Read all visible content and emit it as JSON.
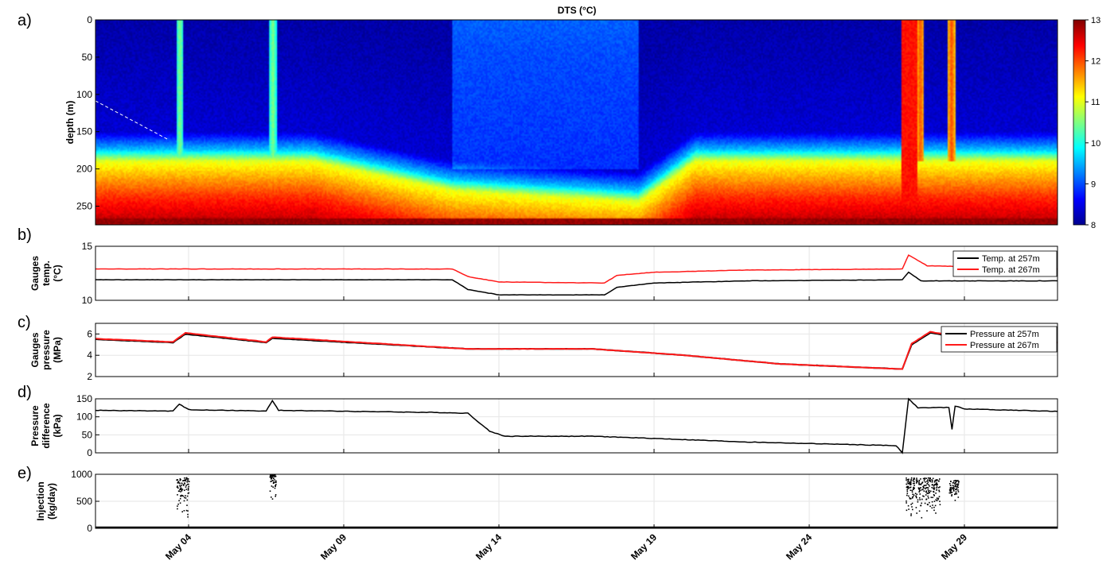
{
  "colors": {
    "black_series": "#000000",
    "red_series": "#ff1a1a",
    "frame": "#000000",
    "grid": "#e6e6e6",
    "dts_colormap": "jet"
  },
  "x_axis": {
    "ticks": [
      "May 04",
      "May 09",
      "May 14",
      "May 19",
      "May 24",
      "May 29"
    ],
    "range_days": [
      1,
      32
    ]
  },
  "chart_data": [
    {
      "id": "a",
      "panel_label": "a)",
      "type": "heatmap",
      "title": "DTS (°C)",
      "ylabel": "depth (m)",
      "yticks": [
        "0",
        "50",
        "100",
        "150",
        "200",
        "250"
      ],
      "ylim_m": [
        0,
        275
      ],
      "y_reversed": true,
      "colorbar": {
        "ticks": [
          "8",
          "9",
          "10",
          "11",
          "12",
          "13"
        ],
        "range": [
          8,
          13
        ]
      },
      "base_profile": [
        [
          0,
          8.2
        ],
        [
          150,
          8.4
        ],
        [
          175,
          9.6
        ],
        [
          190,
          11.0
        ],
        [
          210,
          11.5
        ],
        [
          240,
          12.2
        ],
        [
          265,
          12.6
        ],
        [
          275,
          13
        ]
      ],
      "cool_period_days": [
        12.5,
        18.5
      ],
      "injection_column_days": [
        3.7,
        6.7,
        27.2,
        27.6,
        28.6
      ]
    },
    {
      "id": "b",
      "panel_label": "b)",
      "type": "line",
      "ylabel": [
        "Gauges",
        "temp.",
        "(°C)"
      ],
      "yticks": [
        "10",
        "15"
      ],
      "ylim": [
        10,
        15
      ],
      "legend": [
        "Temp. at 257m",
        "Temp. at 267m"
      ],
      "legend_placement": "top-right",
      "series": [
        {
          "name": "Temp. at 257m",
          "color": "black",
          "points": [
            [
              1,
              11.9
            ],
            [
              12.5,
              11.9
            ],
            [
              13,
              11.0
            ],
            [
              14,
              10.5
            ],
            [
              17.4,
              10.5
            ],
            [
              17.8,
              11.2
            ],
            [
              19,
              11.6
            ],
            [
              22,
              11.8
            ],
            [
              27.0,
              11.9
            ],
            [
              27.2,
              12.6
            ],
            [
              27.6,
              11.8
            ],
            [
              32,
              11.8
            ]
          ]
        },
        {
          "name": "Temp. at 267m",
          "color": "red",
          "points": [
            [
              1,
              12.9
            ],
            [
              12.5,
              12.9
            ],
            [
              13,
              12.2
            ],
            [
              14,
              11.7
            ],
            [
              17.4,
              11.6
            ],
            [
              17.8,
              12.3
            ],
            [
              19,
              12.6
            ],
            [
              22,
              12.8
            ],
            [
              27.0,
              12.9
            ],
            [
              27.2,
              14.2
            ],
            [
              27.8,
              13.2
            ],
            [
              32,
              12.9
            ]
          ]
        }
      ]
    },
    {
      "id": "c",
      "panel_label": "c)",
      "type": "line",
      "ylabel": [
        "Gauges",
        "pressure",
        "(MPa)"
      ],
      "yticks": [
        "2",
        "4",
        "6"
      ],
      "ylim": [
        2,
        7
      ],
      "legend": [
        "Pressure at 257m",
        "Pressure at 267m"
      ],
      "legend_placement": "top-right",
      "series": [
        {
          "name": "Pressure at 257m",
          "color": "black",
          "points": [
            [
              1,
              5.5
            ],
            [
              3.5,
              5.2
            ],
            [
              3.9,
              6.0
            ],
            [
              6.5,
              5.2
            ],
            [
              6.7,
              5.6
            ],
            [
              13,
              4.6
            ],
            [
              17,
              4.6
            ],
            [
              20,
              4.0
            ],
            [
              23,
              3.2
            ],
            [
              27,
              2.7
            ],
            [
              27.3,
              5.0
            ],
            [
              27.9,
              6.1
            ],
            [
              29,
              5.6
            ],
            [
              32,
              5.2
            ]
          ]
        },
        {
          "name": "Pressure at 267m",
          "color": "red",
          "points": [
            [
              1,
              5.55
            ],
            [
              3.5,
              5.25
            ],
            [
              3.9,
              6.1
            ],
            [
              6.5,
              5.25
            ],
            [
              6.7,
              5.7
            ],
            [
              13,
              4.6
            ],
            [
              17,
              4.6
            ],
            [
              20,
              4.0
            ],
            [
              23,
              3.2
            ],
            [
              27,
              2.7
            ],
            [
              27.3,
              5.1
            ],
            [
              27.9,
              6.2
            ],
            [
              29,
              5.7
            ],
            [
              32,
              5.2
            ]
          ]
        }
      ]
    },
    {
      "id": "d",
      "panel_label": "d)",
      "type": "line",
      "ylabel": [
        "Pressure",
        "difference",
        "(kPa)"
      ],
      "yticks": [
        "0",
        "50",
        "100",
        "150"
      ],
      "ylim": [
        0,
        150
      ],
      "series": [
        {
          "name": "",
          "color": "black",
          "points": [
            [
              1,
              118
            ],
            [
              3.5,
              116
            ],
            [
              3.7,
              135
            ],
            [
              4.0,
              120
            ],
            [
              6.5,
              116
            ],
            [
              6.7,
              145
            ],
            [
              6.9,
              118
            ],
            [
              12,
              112
            ],
            [
              13.0,
              110
            ],
            [
              13.7,
              60
            ],
            [
              14.2,
              46
            ],
            [
              17,
              46
            ],
            [
              19,
              40
            ],
            [
              22,
              30
            ],
            [
              26.8,
              20
            ],
            [
              27.0,
              0
            ],
            [
              27.2,
              150
            ],
            [
              27.5,
              125
            ],
            [
              28.5,
              126
            ],
            [
              28.6,
              65
            ],
            [
              28.7,
              130
            ],
            [
              29,
              122
            ],
            [
              32,
              115
            ]
          ]
        }
      ]
    },
    {
      "id": "e",
      "panel_label": "e)",
      "type": "scatter",
      "ylabel": [
        "Injection",
        "(kg/day)"
      ],
      "yticks": [
        "0",
        "500",
        "1000"
      ],
      "ylim": [
        0,
        1000
      ],
      "clusters": [
        {
          "day_range": [
            3.6,
            4.0
          ],
          "value_range": [
            0,
            950
          ]
        },
        {
          "day_range": [
            6.6,
            6.8
          ],
          "value_range": [
            500,
            1000
          ]
        },
        {
          "day_range": [
            27.1,
            28.2
          ],
          "value_range": [
            100,
            950
          ]
        },
        {
          "day_range": [
            28.5,
            28.8
          ],
          "value_range": [
            400,
            900
          ]
        }
      ]
    }
  ]
}
